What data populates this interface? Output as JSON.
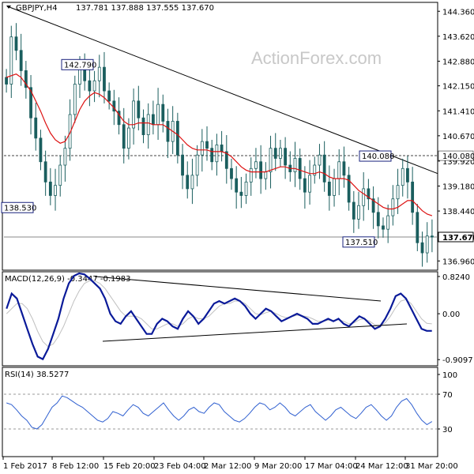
{
  "header": {
    "symbol": "GBPJPY,H4",
    "ohlc": "137.781 137.888 137.555 137.670"
  },
  "watermark": "ActionForex.com",
  "colors": {
    "candle": "#1a5e5e",
    "ma": "#dd1111",
    "macd": "#0a1a99",
    "signal": "#c0c0c0",
    "rsi": "#3060d0",
    "trendline": "#000000",
    "grid_dash": "#999999"
  },
  "chart_data": [
    {
      "type": "candlestick",
      "panel": "price",
      "ylim": [
        136.71,
        144.6
      ],
      "y_ticks": [
        "144.360",
        "143.620",
        "142.880",
        "142.150",
        "141.410",
        "140.670",
        "139.920",
        "139.180",
        "138.440",
        "137.670",
        "136.960"
      ],
      "horizontal_levels": [
        140.08,
        137.67
      ],
      "moving_average": "red line overlay",
      "x_tick_labels": [
        "1 Feb 2017",
        "8 Feb 12:00",
        "15 Feb 20:00",
        "23 Feb 04:00",
        "2 Mar 12:00",
        "9 Mar 20:00",
        "17 Mar 04:00",
        "24 Mar 12:00",
        "31 Mar 20:00"
      ],
      "annotations": [
        {
          "label": "142.790",
          "value": 142.79
        },
        {
          "label": "138.530",
          "value": 138.53
        },
        {
          "label": "140.080",
          "value": 140.08
        },
        {
          "label": "137.510",
          "value": 137.51
        }
      ],
      "last_price_label": "137.670",
      "level_price_label": "140.080",
      "closes": [
        142.2,
        143.6,
        143.2,
        142.6,
        142.1,
        141.2,
        140.6,
        139.9,
        139.3,
        138.9,
        139.2,
        139.8,
        140.3,
        141.3,
        142.2,
        142.7,
        142.3,
        142.0,
        142.3,
        142.7,
        142.0,
        141.7,
        141.4,
        141.0,
        140.3,
        140.9,
        141.7,
        141.2,
        140.7,
        141.3,
        141.0,
        141.6,
        141.1,
        140.5,
        141.1,
        140.1,
        139.5,
        139.1,
        139.5,
        140.1,
        140.5,
        140.3,
        139.9,
        140.4,
        140.2,
        139.7,
        139.4,
        139.0,
        138.9,
        139.3,
        139.7,
        139.9,
        139.4,
        139.6,
        140.3,
        140.0,
        140.3,
        139.8,
        139.6,
        140.0,
        139.4,
        139.0,
        139.5,
        139.8,
        140.1,
        139.3,
        138.9,
        139.4,
        139.9,
        139.5,
        138.7,
        138.2,
        138.6,
        139.1,
        138.8,
        138.4,
        138.0,
        137.9,
        138.3,
        138.8,
        139.2,
        139.7,
        139.3,
        138.4,
        137.5,
        137.2,
        137.7,
        137.67
      ],
      "ma_values": [
        142.4,
        142.45,
        142.5,
        142.4,
        142.2,
        142.0,
        141.7,
        141.4,
        141.05,
        140.75,
        140.55,
        140.45,
        140.5,
        140.75,
        141.1,
        141.45,
        141.7,
        141.85,
        141.95,
        141.9,
        141.8,
        141.65,
        141.5,
        141.3,
        141.1,
        141.0,
        141.0,
        141.05,
        141.05,
        141.05,
        141.0,
        141.0,
        141.0,
        140.9,
        140.8,
        140.7,
        140.55,
        140.4,
        140.3,
        140.25,
        140.25,
        140.25,
        140.2,
        140.2,
        140.2,
        140.15,
        140.05,
        139.9,
        139.75,
        139.65,
        139.6,
        139.6,
        139.6,
        139.6,
        139.65,
        139.7,
        139.75,
        139.75,
        139.7,
        139.7,
        139.65,
        139.6,
        139.55,
        139.55,
        139.6,
        139.55,
        139.45,
        139.4,
        139.4,
        139.4,
        139.35,
        139.2,
        139.05,
        138.95,
        138.85,
        138.75,
        138.65,
        138.55,
        138.5,
        138.5,
        138.55,
        138.65,
        138.75,
        138.75,
        138.6,
        138.45,
        138.35,
        138.3
      ]
    },
    {
      "type": "line",
      "panel": "macd",
      "title": "MACD(12,26,9) -0.3447 -0.1983",
      "ylim": [
        -1.0,
        0.8
      ],
      "y_ticks": [
        "0.8240",
        "0.00",
        "-0.9097"
      ],
      "macd": [
        0.1,
        0.4,
        0.3,
        0.0,
        -0.3,
        -0.6,
        -0.85,
        -0.9,
        -0.7,
        -0.4,
        -0.1,
        0.3,
        0.6,
        0.75,
        0.8,
        0.78,
        0.7,
        0.6,
        0.5,
        0.3,
        0.0,
        -0.15,
        -0.2,
        -0.05,
        0.05,
        -0.1,
        -0.25,
        -0.4,
        -0.4,
        -0.2,
        -0.1,
        -0.15,
        -0.25,
        -0.3,
        -0.1,
        0.05,
        -0.05,
        -0.2,
        -0.1,
        0.05,
        0.2,
        0.25,
        0.2,
        0.25,
        0.3,
        0.25,
        0.15,
        0.0,
        -0.1,
        0.0,
        0.1,
        0.05,
        -0.05,
        -0.15,
        -0.1,
        -0.05,
        0.0,
        -0.05,
        -0.1,
        -0.2,
        -0.2,
        -0.15,
        -0.1,
        -0.15,
        -0.1,
        -0.2,
        -0.25,
        -0.15,
        -0.05,
        -0.1,
        -0.2,
        -0.3,
        -0.25,
        -0.1,
        0.1,
        0.35,
        0.4,
        0.3,
        0.1,
        -0.1,
        -0.3,
        -0.34,
        -0.34
      ],
      "signal": [
        0.0,
        0.1,
        0.2,
        0.2,
        0.1,
        -0.1,
        -0.35,
        -0.55,
        -0.65,
        -0.6,
        -0.45,
        -0.25,
        0.0,
        0.25,
        0.45,
        0.6,
        0.65,
        0.65,
        0.6,
        0.5,
        0.35,
        0.2,
        0.05,
        -0.05,
        -0.05,
        -0.05,
        -0.1,
        -0.2,
        -0.3,
        -0.3,
        -0.25,
        -0.2,
        -0.2,
        -0.25,
        -0.2,
        -0.1,
        -0.05,
        -0.1,
        -0.1,
        -0.05,
        0.05,
        0.15,
        0.2,
        0.2,
        0.25,
        0.25,
        0.2,
        0.1,
        0.0,
        -0.02,
        0.02,
        0.05,
        0.0,
        -0.05,
        -0.08,
        -0.06,
        -0.03,
        -0.04,
        -0.06,
        -0.1,
        -0.15,
        -0.15,
        -0.13,
        -0.13,
        -0.12,
        -0.15,
        -0.2,
        -0.18,
        -0.12,
        -0.1,
        -0.15,
        -0.22,
        -0.24,
        -0.18,
        -0.05,
        0.12,
        0.25,
        0.28,
        0.2,
        0.05,
        -0.1,
        -0.19,
        -0.2
      ]
    },
    {
      "type": "line",
      "panel": "rsi",
      "title": "RSI(14) 38.5277",
      "ylim": [
        0,
        100
      ],
      "y_ticks": [
        "100",
        "70",
        "30"
      ],
      "levels": [
        70,
        30
      ],
      "values": [
        60,
        58,
        52,
        45,
        40,
        32,
        30,
        35,
        45,
        55,
        60,
        68,
        66,
        62,
        58,
        55,
        50,
        45,
        40,
        38,
        42,
        50,
        48,
        45,
        52,
        58,
        55,
        48,
        45,
        50,
        55,
        60,
        52,
        45,
        40,
        45,
        52,
        55,
        50,
        48,
        55,
        60,
        58,
        50,
        45,
        40,
        38,
        42,
        48,
        55,
        60,
        58,
        52,
        55,
        60,
        55,
        48,
        45,
        50,
        55,
        58,
        50,
        45,
        40,
        45,
        52,
        55,
        50,
        45,
        42,
        48,
        55,
        58,
        52,
        45,
        40,
        45,
        55,
        62,
        65,
        58,
        48,
        40,
        35,
        38.53
      ]
    }
  ]
}
